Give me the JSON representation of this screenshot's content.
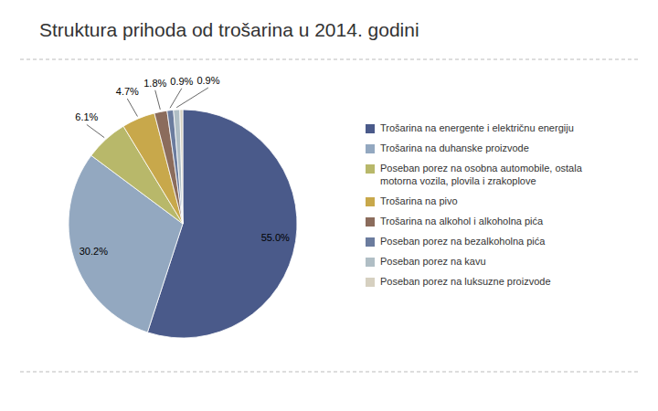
{
  "chart_data": {
    "type": "pie",
    "title": "Struktura prihoda od trošarina u 2014. godini",
    "categories": [
      "Trošarina na energente i električnu energiju",
      "Trošarina na duhanske proizvode",
      "Poseban porez na osobna automobile, ostala\nmotorna vozila, plovila i zrakoplove",
      "Trošarina na pivo",
      "Trošarina na alkohol i alkoholna pića",
      "Poseban porez na bezalkoholna pića",
      "Poseban porez na kavu",
      "Poseban porez na luksuzne proizvode"
    ],
    "values": [
      55.0,
      30.2,
      6.1,
      4.7,
      1.8,
      0.9,
      0.9,
      0.4
    ],
    "value_labels": [
      "55.0%",
      "30.2%",
      "6.1%",
      "4.7%",
      "1.8%",
      "0.9%",
      "0.9%",
      null
    ],
    "colors": [
      "#4a5a8a",
      "#93a8c0",
      "#b8b86a",
      "#c8a84b",
      "#8b6c5c",
      "#6b7c9e",
      "#b0bec5",
      "#d6d0c0"
    ],
    "data_labels": true,
    "legend": "right"
  }
}
